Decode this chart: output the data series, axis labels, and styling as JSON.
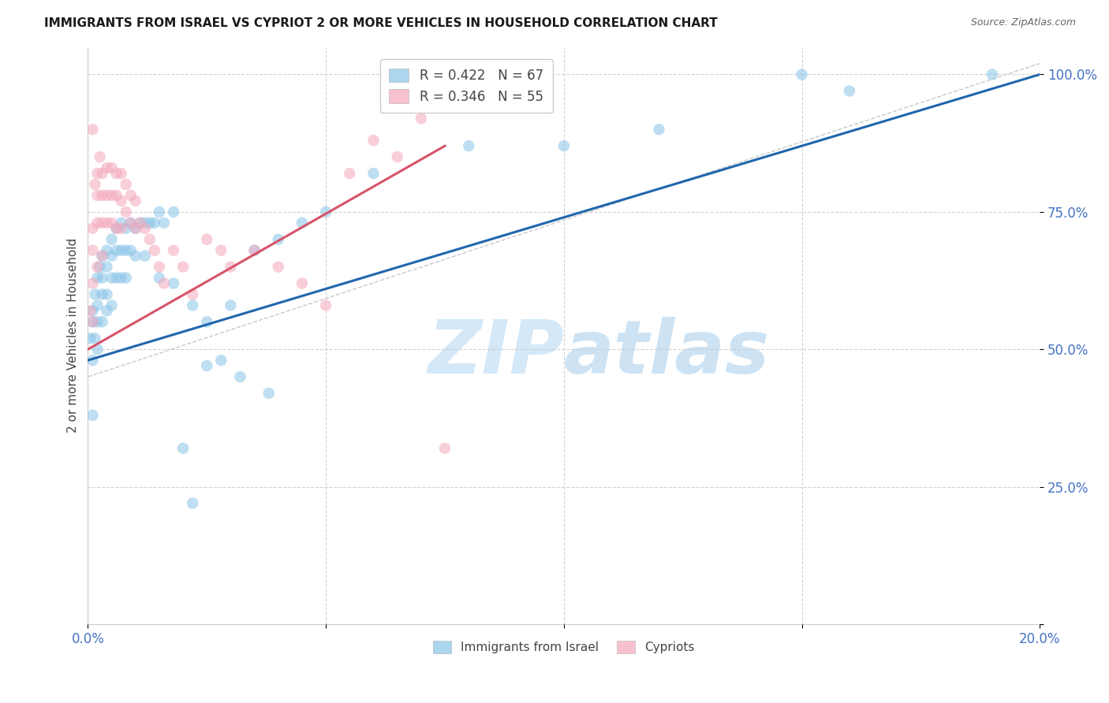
{
  "title": "IMMIGRANTS FROM ISRAEL VS CYPRIOT 2 OR MORE VEHICLES IN HOUSEHOLD CORRELATION CHART",
  "source": "Source: ZipAtlas.com",
  "ylabel": "2 or more Vehicles in Household",
  "blue_color": "#89c4e8",
  "pink_color": "#f4a8ba",
  "blue_line_color": "#2166ac",
  "pink_line_color": "#d6546a",
  "axis_color": "#4472C4",
  "watermark_color": "#d4e8f8",
  "xlim": [
    0.0,
    0.2
  ],
  "ylim": [
    0.0,
    1.05
  ],
  "y_ticks": [
    0.0,
    0.25,
    0.5,
    0.75,
    1.0
  ],
  "y_tick_labels": [
    "",
    "25.0%",
    "50.0%",
    "75.0%",
    "100.0%"
  ],
  "x_ticks": [
    0.0,
    0.05,
    0.1,
    0.15,
    0.2
  ],
  "x_tick_labels": [
    "0.0%",
    "",
    "",
    "",
    "20.0%"
  ],
  "blue_line_x": [
    0.0,
    0.2
  ],
  "blue_line_y": [
    0.48,
    1.0
  ],
  "pink_line_x": [
    0.0,
    0.075
  ],
  "pink_line_y": [
    0.5,
    0.87
  ],
  "ref_line_x": [
    0.0,
    0.2
  ],
  "ref_line_y": [
    0.45,
    1.02
  ],
  "blue_scatter_x": [
    0.0005,
    0.001,
    0.001,
    0.001,
    0.001,
    0.0015,
    0.0015,
    0.002,
    0.002,
    0.002,
    0.002,
    0.0025,
    0.003,
    0.003,
    0.003,
    0.003,
    0.004,
    0.004,
    0.004,
    0.004,
    0.005,
    0.005,
    0.005,
    0.005,
    0.006,
    0.006,
    0.006,
    0.007,
    0.007,
    0.007,
    0.008,
    0.008,
    0.008,
    0.009,
    0.009,
    0.01,
    0.01,
    0.011,
    0.012,
    0.013,
    0.014,
    0.015,
    0.016,
    0.018,
    0.02,
    0.022,
    0.025,
    0.028,
    0.032,
    0.038,
    0.012,
    0.015,
    0.018,
    0.022,
    0.025,
    0.03,
    0.035,
    0.04,
    0.045,
    0.05,
    0.06,
    0.08,
    0.1,
    0.12,
    0.15,
    0.16,
    0.19
  ],
  "blue_scatter_y": [
    0.52,
    0.55,
    0.48,
    0.57,
    0.38,
    0.6,
    0.52,
    0.63,
    0.58,
    0.55,
    0.5,
    0.65,
    0.67,
    0.63,
    0.6,
    0.55,
    0.68,
    0.65,
    0.6,
    0.57,
    0.7,
    0.67,
    0.63,
    0.58,
    0.72,
    0.68,
    0.63,
    0.73,
    0.68,
    0.63,
    0.72,
    0.68,
    0.63,
    0.73,
    0.68,
    0.72,
    0.67,
    0.73,
    0.73,
    0.73,
    0.73,
    0.75,
    0.73,
    0.75,
    0.32,
    0.22,
    0.47,
    0.48,
    0.45,
    0.42,
    0.67,
    0.63,
    0.62,
    0.58,
    0.55,
    0.58,
    0.68,
    0.7,
    0.73,
    0.75,
    0.82,
    0.87,
    0.87,
    0.9,
    1.0,
    0.97,
    1.0
  ],
  "pink_scatter_x": [
    0.0005,
    0.001,
    0.001,
    0.001,
    0.001,
    0.0015,
    0.002,
    0.002,
    0.002,
    0.002,
    0.0025,
    0.003,
    0.003,
    0.003,
    0.003,
    0.004,
    0.004,
    0.004,
    0.005,
    0.005,
    0.005,
    0.006,
    0.006,
    0.006,
    0.007,
    0.007,
    0.007,
    0.008,
    0.008,
    0.009,
    0.009,
    0.01,
    0.01,
    0.011,
    0.012,
    0.013,
    0.014,
    0.015,
    0.016,
    0.018,
    0.02,
    0.022,
    0.025,
    0.028,
    0.03,
    0.035,
    0.04,
    0.045,
    0.05,
    0.055,
    0.06,
    0.065,
    0.07,
    0.075,
    0.001
  ],
  "pink_scatter_y": [
    0.57,
    0.72,
    0.68,
    0.62,
    0.55,
    0.8,
    0.82,
    0.78,
    0.73,
    0.65,
    0.85,
    0.82,
    0.78,
    0.73,
    0.67,
    0.83,
    0.78,
    0.73,
    0.83,
    0.78,
    0.73,
    0.82,
    0.78,
    0.72,
    0.82,
    0.77,
    0.72,
    0.8,
    0.75,
    0.78,
    0.73,
    0.77,
    0.72,
    0.73,
    0.72,
    0.7,
    0.68,
    0.65,
    0.62,
    0.68,
    0.65,
    0.6,
    0.7,
    0.68,
    0.65,
    0.68,
    0.65,
    0.62,
    0.58,
    0.82,
    0.88,
    0.85,
    0.92,
    0.32,
    0.9
  ]
}
